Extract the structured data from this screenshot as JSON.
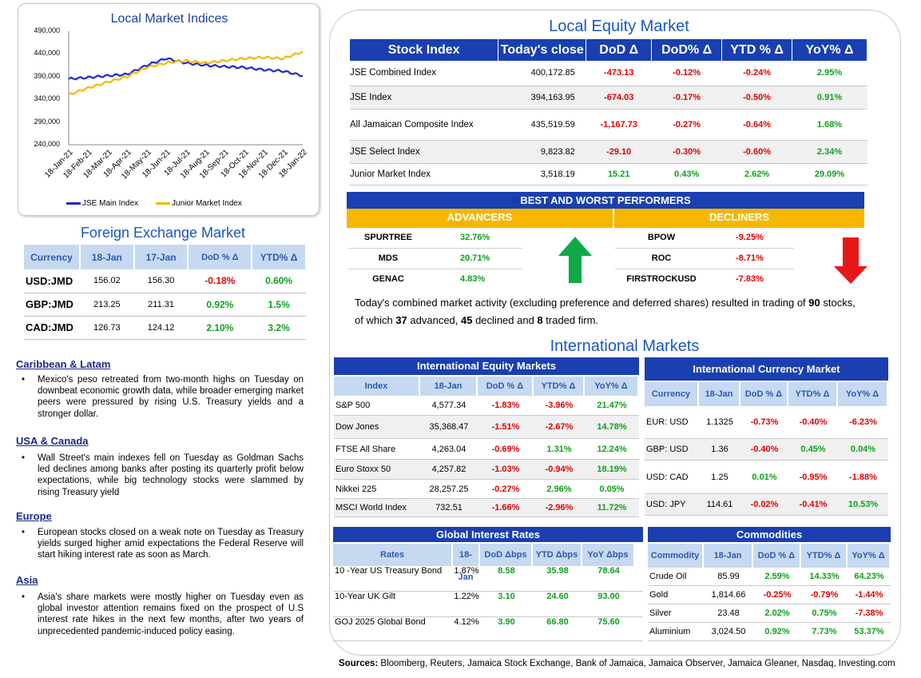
{
  "chart_data": {
    "type": "line",
    "title": "Local Market Indices",
    "x": [
      "18-Jan-21",
      "18-Feb-21",
      "18-Mar-21",
      "18-Apr-21",
      "18-May-21",
      "18-Jun-21",
      "18-Jul-21",
      "18-Aug-21",
      "18-Sep-21",
      "18-Oct-21",
      "18-Nov-21",
      "18-Dec-21",
      "18-Jan-22"
    ],
    "yticks": [
      "490,000",
      "440,000",
      "390,000",
      "340,000",
      "290,000",
      "240,000"
    ],
    "ylim": [
      240000,
      490000
    ],
    "series": [
      {
        "name": "JSE Main Index",
        "color": "#1a2ad0",
        "values": [
          385000,
          388000,
          392000,
          395000,
          415000,
          430000,
          420000,
          415000,
          412000,
          410000,
          405000,
          402000,
          392000
        ]
      },
      {
        "name": "Junior Market Index",
        "color": "#f5b800",
        "values": [
          350000,
          365000,
          378000,
          390000,
          410000,
          420000,
          425000,
          420000,
          425000,
          430000,
          432000,
          430000,
          445000
        ]
      }
    ],
    "legend_position": "bottom",
    "grid": false
  },
  "fx": {
    "title": "Foreign Exchange Market",
    "headers": [
      "Currency",
      "18-Jan",
      "17-Jan",
      "DoD % Δ",
      "YTD% Δ"
    ],
    "rows": [
      [
        "USD:JMD",
        "156.02",
        "156.30",
        "-0.18%",
        "0.60%"
      ],
      [
        "GBP:JMD",
        "213.25",
        "211.31",
        "0.92%",
        "1.5%"
      ],
      [
        "CAD:JMD",
        "126.73",
        "124.12",
        "2.10%",
        "3.2%"
      ]
    ]
  },
  "news": [
    {
      "heading": "Caribbean & Latam",
      "text": "Mexico's peso retreated from two-month highs on Tuesday on downbeat economic growth data, while broader emerging market peers were pressured by rising U.S. Treasury yields and a stronger dollar."
    },
    {
      "heading": "USA & Canada",
      "text": "Wall Street's main indexes fell on Tuesday as Goldman Sachs led declines among banks after posting its quarterly profit below expectations, while big technology stocks were slammed by rising Treasury yield"
    },
    {
      "heading": "Europe",
      "text": "European stocks closed on a weak note on Tuesday as Treasury yields surged higher amid expectations the Federal Reserve will start hiking interest rate as soon as March."
    },
    {
      "heading": "Asia",
      "text": "Asia's share markets were mostly higher on Tuesday even as global investor attention remains fixed on the prospect of U.S interest rate hikes in the next few months, after two years of unprecedented pandemic-induced policy easing."
    }
  ],
  "local_equity": {
    "title": "Local Equity Market",
    "headers": [
      "Stock Index",
      "Today's close",
      "DoD  Δ",
      "DoD% Δ",
      "YTD % Δ",
      "YoY% Δ"
    ],
    "rows": [
      [
        "JSE Combined Index",
        "400,172.85",
        "-473.13",
        "-0.12%",
        "-0.24%",
        "2.95%"
      ],
      [
        "JSE Index",
        "394,163.95",
        "-674.03",
        "-0.17%",
        "-0.50%",
        "0.91%"
      ],
      [
        "All Jamaican Composite Index",
        "435,519.59",
        "-1,167.73",
        "-0.27%",
        "-0.64%",
        "1.68%"
      ],
      [
        "JSE Select Index",
        "9,823.82",
        "-29.10",
        "-0.30%",
        "-0.60%",
        "2.34%"
      ],
      [
        "Junior Market Index",
        "3,518.19",
        "15.21",
        "0.43%",
        "2.62%",
        "29.09%"
      ]
    ]
  },
  "performers": {
    "title": "BEST AND WORST PERFORMERS",
    "advancers_label": "ADVANCERS",
    "decliners_label": "DECLINERS",
    "advancers": [
      [
        "SPURTREE",
        "32.76%"
      ],
      [
        "MDS",
        "20.71%"
      ],
      [
        "GENAC",
        "4.83%"
      ]
    ],
    "decliners": [
      [
        "BPOW",
        "-9.25%"
      ],
      [
        "ROC",
        "-8.71%"
      ],
      [
        "FIRSTROCKUSD",
        "-7.83%"
      ]
    ]
  },
  "summary": {
    "t1": "Today's combined market activity (excluding preference and deferred shares) resulted in trading of ",
    "n1": "90",
    "t2": " stocks, of which ",
    "n2": "37",
    "t3": " advanced, ",
    "n3": "45",
    "t4": " declined and ",
    "n4": "8",
    "t5": " traded firm."
  },
  "intl": {
    "title": "International Markets",
    "equity": {
      "title": "International Equity Markets",
      "headers": [
        "Index",
        "18-Jan",
        "DoD % Δ",
        "YTD% Δ",
        "YoY% Δ"
      ],
      "rows": [
        [
          "S&P 500",
          "4,577.34",
          "-1.83%",
          "-3.96%",
          "21.47%"
        ],
        [
          "Dow Jones",
          "35,368.47",
          "-1.51%",
          "-2.67%",
          "14.78%"
        ],
        [
          "FTSE All Share",
          "4,263.04",
          "-0.69%",
          "1.31%",
          "12.24%"
        ],
        [
          "Euro Stoxx 50",
          "4,257.82",
          "-1.03%",
          "-0.94%",
          "18.19%"
        ],
        [
          "Nikkei 225",
          "28,257.25",
          "-0.27%",
          "2.96%",
          "0.05%"
        ],
        [
          "MSCI World Index",
          "732.51",
          "-1.66%",
          "-2.96%",
          "11.72%"
        ]
      ]
    },
    "currency": {
      "title": "International Currency Market",
      "headers": [
        "Currency",
        "18-Jan",
        "DoD % Δ",
        "YTD% Δ",
        "YoY% Δ"
      ],
      "rows": [
        [
          "EUR: USD",
          "1.1325",
          "-0.73%",
          "-0.40%",
          "-6.23%"
        ],
        [
          "GBP: USD",
          "1.36",
          "-0.40%",
          "0.45%",
          "0.04%"
        ],
        [
          "USD: CAD",
          "1.25",
          "0.01%",
          "-0.95%",
          "-1.88%"
        ],
        [
          "USD: JPY",
          "114.61",
          "-0.02%",
          "-0.41%",
          "10.53%"
        ]
      ]
    },
    "rates": {
      "title": "Global Interest Rates",
      "headers": [
        "Rates",
        "18-Jan",
        "DoD Δbps",
        "YTD Δbps",
        "YoY Δbps"
      ],
      "rows": [
        [
          "10 -Year US Treasury Bond",
          "1.87%",
          "8.58",
          "35.98",
          "78.64"
        ],
        [
          "10-Year UK Gilt",
          "1.22%",
          "3.10",
          "24.60",
          "93.00"
        ],
        [
          "GOJ 2025 Global Bond",
          "4.12%",
          "3.90",
          "66.80",
          "75.60"
        ]
      ]
    },
    "commodities": {
      "title": "Commodities",
      "headers": [
        "Commodity",
        "18-Jan",
        "DoD % Δ",
        "YTD% Δ",
        "YoY% Δ"
      ],
      "rows": [
        [
          "Crude Oil",
          "85.99",
          "2.59%",
          "14.33%",
          "64.23%"
        ],
        [
          "Gold",
          "1,814.66",
          "-0.25%",
          "-0.79%",
          "-1.44%"
        ],
        [
          "Silver",
          "23.48",
          "2.02%",
          "0.75%",
          "-7.38%"
        ],
        [
          "Aluminium",
          "3,024.50",
          "0.92%",
          "7.73%",
          "53.37%"
        ]
      ]
    }
  },
  "sources": {
    "label": "Sources:",
    "text": " Bloomberg, Reuters, Jamaica Stock Exchange, Bank of Jamaica, Jamaica Observer, Jamaica Gleaner, Nasdaq, Investing.com"
  }
}
